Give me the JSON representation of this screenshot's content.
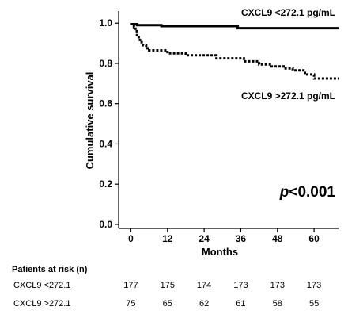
{
  "chart_data": {
    "type": "line",
    "xlabel": "Months",
    "ylabel": "Cumulative survival",
    "xlim": [
      -4,
      68
    ],
    "ylim": [
      -0.02,
      1.06
    ],
    "xticks": [
      0,
      12,
      24,
      36,
      48,
      60
    ],
    "yticks": [
      0.0,
      0.2,
      0.4,
      0.6,
      0.8,
      1.0
    ],
    "ytick_labels": [
      "0.0",
      "0.2",
      "0.4",
      "0.6",
      "0.8",
      "1.0"
    ],
    "grid": false,
    "series": [
      {
        "name": "CXCL9 <272.1 pg/mL",
        "style": "solid",
        "color": "#000000",
        "x": [
          0,
          2,
          2,
          10,
          10,
          35,
          35,
          68
        ],
        "y": [
          0.995,
          0.995,
          0.99,
          0.99,
          0.985,
          0.985,
          0.975,
          0.975
        ]
      },
      {
        "name": "CXCL9 >272.1 pg/mL",
        "style": "dotted",
        "color": "#000000",
        "x": [
          0,
          1,
          1,
          1.5,
          1.5,
          2,
          2,
          3,
          3,
          4,
          4,
          5,
          5,
          6,
          6,
          12,
          12,
          18,
          18,
          28,
          28,
          37,
          37,
          42,
          42,
          46,
          46,
          50,
          50,
          53,
          53,
          57,
          57,
          60,
          60,
          68
        ],
        "y": [
          0.995,
          0.995,
          0.98,
          0.98,
          0.96,
          0.96,
          0.93,
          0.93,
          0.905,
          0.905,
          0.89,
          0.89,
          0.875,
          0.875,
          0.865,
          0.865,
          0.85,
          0.85,
          0.84,
          0.84,
          0.825,
          0.825,
          0.81,
          0.81,
          0.795,
          0.795,
          0.785,
          0.785,
          0.775,
          0.775,
          0.765,
          0.765,
          0.745,
          0.745,
          0.725,
          0.725
        ]
      }
    ],
    "annotations": {
      "label_high": "CXCL9 <272.1 pg/mL",
      "label_low": "CXCL9 >272.1 pg/mL",
      "p_symbol": "p",
      "p_rest": "<0.001"
    },
    "risk_table": {
      "title": "Patients at risk (n)",
      "rows": [
        {
          "label": "CXCL9 <272.1",
          "values": [
            "177",
            "175",
            "174",
            "173",
            "173",
            "173"
          ]
        },
        {
          "label": "CXCL9 >272.1",
          "values": [
            "75",
            "65",
            "62",
            "61",
            "58",
            "55"
          ]
        }
      ]
    }
  }
}
